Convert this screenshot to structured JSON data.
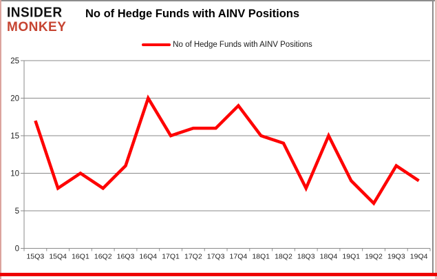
{
  "header": {
    "logo_line1": "INSIDER",
    "logo_line2": "MONKEY",
    "title": "No of Hedge Funds with AINV Positions"
  },
  "legend": {
    "label": "No of Hedge Funds with AINV Positions"
  },
  "colors": {
    "line": "#fe0000",
    "grid": "#8a8a8a",
    "axis": "#8a8a8a",
    "axis_text": "#1f1f1f",
    "logo_black": "#111111",
    "logo_red": "#c64431",
    "frame_bottom_red": "#ee0000"
  },
  "chart_data": {
    "type": "line",
    "title": "No of Hedge Funds with AINV Positions",
    "series": [
      {
        "name": "No of Hedge Funds with AINV Positions",
        "values": [
          17,
          8,
          10,
          8,
          11,
          20,
          15,
          16,
          16,
          19,
          15,
          14,
          8,
          15,
          9,
          6,
          11,
          9
        ]
      }
    ],
    "categories": [
      "15Q3",
      "15Q4",
      "16Q1",
      "16Q2",
      "16Q3",
      "16Q4",
      "17Q1",
      "17Q2",
      "17Q3",
      "17Q4",
      "18Q1",
      "18Q2",
      "18Q3",
      "18Q4",
      "19Q1",
      "19Q2",
      "19Q3",
      "19Q4"
    ],
    "xlabel": "",
    "ylabel": "",
    "ylim": [
      0,
      25
    ],
    "yticks": [
      0,
      5,
      10,
      15,
      20,
      25
    ],
    "grid": "horizontal",
    "legend_position": "top-center"
  }
}
